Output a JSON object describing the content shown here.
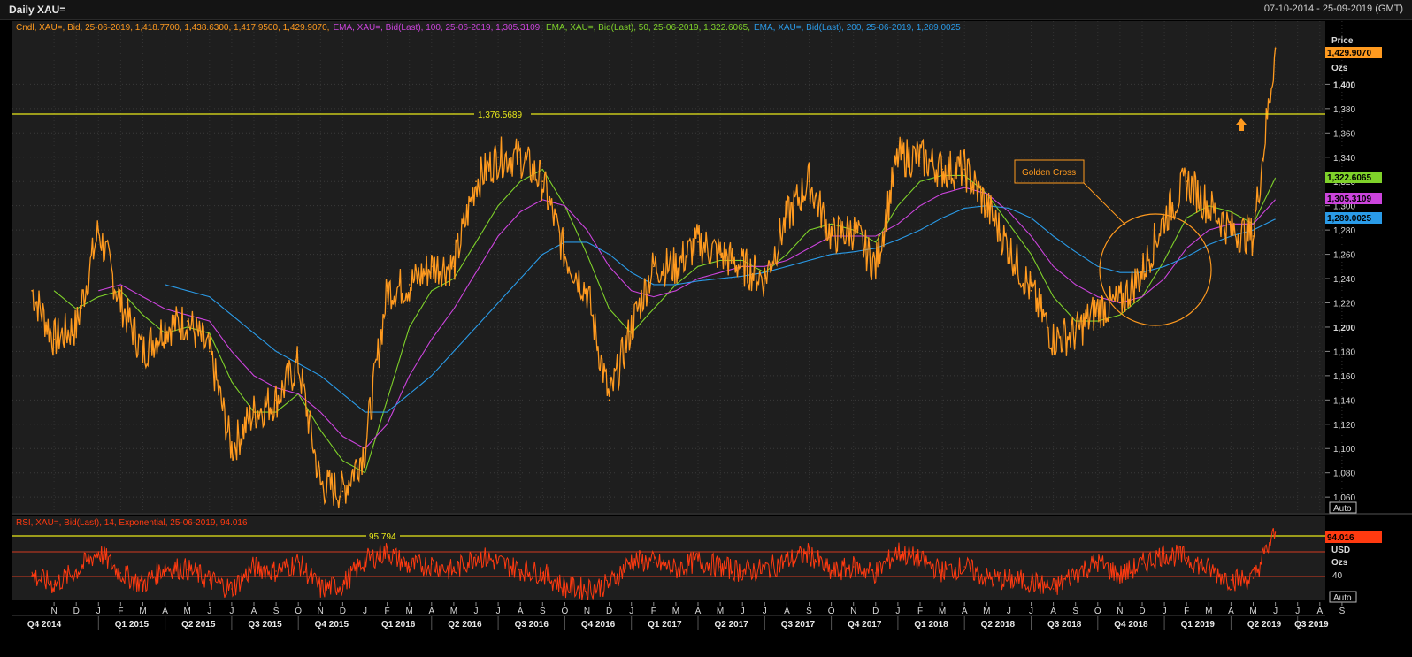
{
  "window": {
    "title": "Daily XAU=",
    "date_range": "07-10-2014 - 25-09-2019 (GMT)"
  },
  "colors": {
    "background": "#1e1e1e",
    "price": "#ff9a1f",
    "ema50": "#7fd22a",
    "ema100": "#cc44dd",
    "ema200": "#2a9be8",
    "resistance": "#e8e81a",
    "rsi": "#ff3a10"
  },
  "legend": {
    "candle": "Cndl, XAU=, Bid, 25-06-2019, 1,418.7700, 1,438.6300, 1,417.9500, 1,429.9070,",
    "ema100": "EMA, XAU=, Bid(Last),  100, 25-06-2019, 1,305.3109,",
    "ema50": "EMA, XAU=, Bid(Last),  50, 25-06-2019, 1,322.6065,",
    "ema200": "EMA, XAU=, Bid(Last),  200, 25-06-2019, 1,289.0025",
    "rsi": "RSI, XAU=, Bid(Last),  14, Exponential, 25-06-2019, 94.016"
  },
  "price_axis": {
    "header": "Price",
    "unit": "Ozs",
    "auto_label": "Auto",
    "ticks": [
      "1,060",
      "1,080",
      "1,100",
      "1,120",
      "1,140",
      "1,160",
      "1,180",
      "1,200",
      "1,220",
      "1,240",
      "1,260",
      "1,280",
      "1,300",
      "1,320",
      "1,340",
      "1,360",
      "1,380",
      "1,400"
    ],
    "tags": {
      "last": "1,429.9070",
      "ema50": "1,322.6065",
      "ema100": "1,305.3109",
      "ema200": "1,289.0025"
    }
  },
  "rsi_axis": {
    "value_tag": "94.016",
    "currency": "USD",
    "unit": "Ozs",
    "tick_40": "40",
    "auto_label": "Auto"
  },
  "annotations": {
    "resistance_label": "1,376.5689",
    "golden_cross_label": "Golden Cross",
    "rsi_high_label": "95.794"
  },
  "time_axis": {
    "months": [
      "N",
      "D",
      "J",
      "F",
      "M",
      "A",
      "M",
      "J",
      "J",
      "A",
      "S",
      "O",
      "N",
      "D",
      "J",
      "F",
      "M",
      "A",
      "M",
      "J",
      "J",
      "A",
      "S",
      "O",
      "N",
      "D",
      "J",
      "F",
      "M",
      "A",
      "M",
      "J",
      "J",
      "A",
      "S",
      "O",
      "N",
      "D",
      "J",
      "F",
      "M",
      "A",
      "M",
      "J",
      "J",
      "A",
      "S",
      "O",
      "N",
      "D",
      "J",
      "F",
      "M",
      "A",
      "M",
      "J",
      "J",
      "A",
      "S"
    ],
    "quarters": [
      "Q4 2014",
      "Q1 2015",
      "Q2 2015",
      "Q3 2015",
      "Q4 2015",
      "Q1 2016",
      "Q2 2016",
      "Q3 2016",
      "Q4 2016",
      "Q1 2017",
      "Q2 2017",
      "Q3 2017",
      "Q4 2017",
      "Q1 2018",
      "Q2 2018",
      "Q3 2018",
      "Q4 2018",
      "Q1 2019",
      "Q2 2019",
      "Q3 2019"
    ]
  },
  "chart_data": [
    {
      "type": "line",
      "title": "Daily XAU=",
      "ylabel": "Price (Ozs)",
      "ylim": [
        1047,
        1452
      ],
      "x": [
        "2014-10",
        "2014-11",
        "2014-12",
        "2015-01",
        "2015-02",
        "2015-03",
        "2015-04",
        "2015-05",
        "2015-06",
        "2015-07",
        "2015-08",
        "2015-09",
        "2015-10",
        "2015-11",
        "2015-12",
        "2016-01",
        "2016-02",
        "2016-03",
        "2016-04",
        "2016-05",
        "2016-06",
        "2016-07",
        "2016-08",
        "2016-09",
        "2016-10",
        "2016-11",
        "2016-12",
        "2017-01",
        "2017-02",
        "2017-03",
        "2017-04",
        "2017-05",
        "2017-06",
        "2017-07",
        "2017-08",
        "2017-09",
        "2017-10",
        "2017-11",
        "2017-12",
        "2018-01",
        "2018-02",
        "2018-03",
        "2018-04",
        "2018-05",
        "2018-06",
        "2018-07",
        "2018-08",
        "2018-09",
        "2018-10",
        "2018-11",
        "2018-12",
        "2019-01",
        "2019-02",
        "2019-03",
        "2019-04",
        "2019-05",
        "2019-06"
      ],
      "series": [
        {
          "name": "XAU=",
          "values": [
            1230,
            1190,
            1200,
            1280,
            1220,
            1180,
            1200,
            1205,
            1180,
            1100,
            1130,
            1140,
            1170,
            1070,
            1065,
            1100,
            1230,
            1235,
            1250,
            1250,
            1320,
            1340,
            1340,
            1320,
            1260,
            1230,
            1140,
            1200,
            1250,
            1250,
            1270,
            1260,
            1250,
            1240,
            1290,
            1320,
            1275,
            1280,
            1250,
            1340,
            1340,
            1330,
            1330,
            1300,
            1265,
            1230,
            1190,
            1195,
            1215,
            1220,
            1245,
            1290,
            1320,
            1300,
            1280,
            1275,
            1430
          ]
        },
        {
          "name": "EMA 50",
          "values": [
            null,
            1230,
            1215,
            1225,
            1230,
            1210,
            1195,
            1200,
            1195,
            1155,
            1130,
            1130,
            1145,
            1115,
            1090,
            1080,
            1140,
            1200,
            1230,
            1240,
            1270,
            1300,
            1320,
            1330,
            1300,
            1260,
            1215,
            1195,
            1215,
            1235,
            1250,
            1255,
            1255,
            1245,
            1260,
            1280,
            1285,
            1280,
            1270,
            1300,
            1320,
            1325,
            1325,
            1310,
            1285,
            1260,
            1225,
            1205,
            1205,
            1210,
            1225,
            1255,
            1290,
            1300,
            1295,
            1285,
            1323
          ]
        },
        {
          "name": "EMA 100",
          "values": [
            null,
            null,
            null,
            1230,
            1235,
            1225,
            1215,
            1210,
            1205,
            1180,
            1160,
            1150,
            1145,
            1130,
            1110,
            1100,
            1120,
            1160,
            1190,
            1215,
            1245,
            1275,
            1295,
            1305,
            1300,
            1280,
            1250,
            1230,
            1225,
            1230,
            1240,
            1245,
            1250,
            1250,
            1255,
            1265,
            1275,
            1275,
            1275,
            1285,
            1300,
            1310,
            1315,
            1310,
            1295,
            1275,
            1250,
            1235,
            1225,
            1220,
            1225,
            1240,
            1265,
            1280,
            1285,
            1285,
            1305
          ]
        },
        {
          "name": "EMA 200",
          "values": [
            null,
            null,
            null,
            null,
            null,
            null,
            1235,
            1230,
            1225,
            1210,
            1195,
            1180,
            1170,
            1160,
            1145,
            1130,
            1130,
            1145,
            1160,
            1180,
            1200,
            1220,
            1240,
            1260,
            1270,
            1270,
            1260,
            1245,
            1235,
            1235,
            1238,
            1240,
            1242,
            1245,
            1250,
            1255,
            1260,
            1262,
            1265,
            1272,
            1280,
            1290,
            1298,
            1300,
            1298,
            1290,
            1275,
            1262,
            1250,
            1245,
            1245,
            1250,
            1258,
            1268,
            1275,
            1280,
            1289
          ]
        }
      ],
      "annotations": [
        "1,376.5689",
        "Golden Cross"
      ]
    },
    {
      "type": "line",
      "title": "RSI, XAU=, Bid(Last), 14, Exponential",
      "ylim": [
        20,
        100
      ],
      "x": [
        "2014-10",
        "2014-11",
        "2014-12",
        "2015-01",
        "2015-02",
        "2015-03",
        "2015-04",
        "2015-05",
        "2015-06",
        "2015-07",
        "2015-08",
        "2015-09",
        "2015-10",
        "2015-11",
        "2015-12",
        "2016-01",
        "2016-02",
        "2016-03",
        "2016-04",
        "2016-05",
        "2016-06",
        "2016-07",
        "2016-08",
        "2016-09",
        "2016-10",
        "2016-11",
        "2016-12",
        "2017-01",
        "2017-02",
        "2017-03",
        "2017-04",
        "2017-05",
        "2017-06",
        "2017-07",
        "2017-08",
        "2017-09",
        "2017-10",
        "2017-11",
        "2017-12",
        "2018-01",
        "2018-02",
        "2018-03",
        "2018-04",
        "2018-05",
        "2018-06",
        "2018-07",
        "2018-08",
        "2018-09",
        "2018-10",
        "2018-11",
        "2018-12",
        "2019-01",
        "2019-02",
        "2019-03",
        "2019-04",
        "2019-05",
        "2019-06"
      ],
      "series": [
        {
          "name": "RSI",
          "values": [
            45,
            35,
            50,
            72,
            48,
            35,
            55,
            52,
            40,
            30,
            55,
            50,
            60,
            30,
            35,
            62,
            72,
            55,
            58,
            50,
            68,
            60,
            52,
            48,
            32,
            30,
            35,
            62,
            60,
            52,
            62,
            55,
            50,
            52,
            62,
            70,
            48,
            55,
            48,
            72,
            62,
            50,
            55,
            42,
            40,
            38,
            30,
            48,
            60,
            45,
            58,
            70,
            65,
            52,
            40,
            42,
            94
          ]
        }
      ],
      "annotations": [
        "95.794"
      ]
    }
  ]
}
